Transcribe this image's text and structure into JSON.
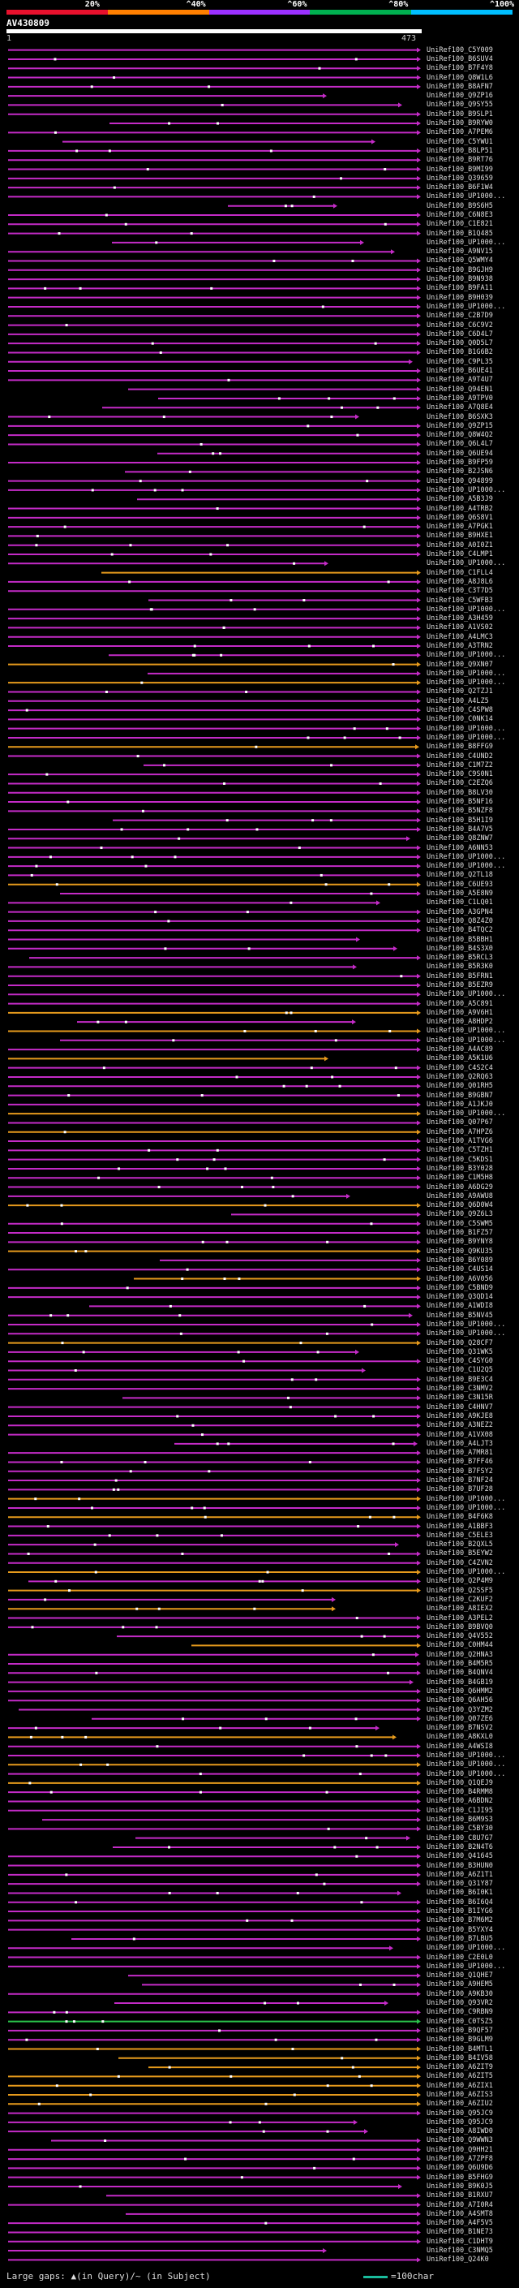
{
  "legend": {
    "percent_labels": [
      "20%",
      "^40%",
      "^60%",
      "^80%",
      "^100%"
    ],
    "segment_colors": [
      "#e8112d",
      "#ff7f00",
      "#9b30ff",
      "#00b050",
      "#00bfff"
    ]
  },
  "query": {
    "id": "AV430809",
    "start": "1",
    "end": "473"
  },
  "colors": {
    "purple": "#c42bc7",
    "orange": "#e69a1c",
    "green": "#2ac24a",
    "white": "#ffffff"
  },
  "hits": [
    {
      "label": "UniRef100_C5Y009",
      "color": "purple"
    },
    {
      "label": "UniRef100_B6SUV4",
      "color": "purple"
    },
    {
      "label": "UniRef100_B7F4Y8",
      "color": "purple"
    },
    {
      "label": "UniRef100_Q8W1L6",
      "color": "purple"
    },
    {
      "label": "UniRef100_B8AFN7",
      "color": "purple"
    },
    {
      "label": "UniRef100_Q9ZP16",
      "color": "purple"
    },
    {
      "label": "UniRef100_Q9SY55",
      "color": "purple"
    },
    {
      "label": "UniRef100_B9SLP1",
      "color": "purple"
    },
    {
      "label": "UniRef100_B9RYW0",
      "color": "purple"
    },
    {
      "label": "UniRef100_A7PEM6",
      "color": "purple"
    },
    {
      "label": "UniRef100_C5YWU1",
      "color": "purple"
    },
    {
      "label": "UniRef100_B8LP51",
      "color": "purple"
    },
    {
      "label": "UniRef100_B9RT76",
      "color": "purple"
    },
    {
      "label": "UniRef100_B9MI99",
      "color": "purple"
    },
    {
      "label": "UniRef100_Q39659",
      "color": "purple"
    },
    {
      "label": "UniRef100_B6F1W4",
      "color": "purple"
    },
    {
      "label": "UniRef100_UP1000...",
      "color": "purple"
    },
    {
      "label": "UniRef100_B9S6H5",
      "color": "purple"
    },
    {
      "label": "UniRef100_C6N8E3",
      "color": "purple"
    },
    {
      "label": "UniRef100_C1E821",
      "color": "purple"
    },
    {
      "label": "UniRef100_B1Q485",
      "color": "purple"
    },
    {
      "label": "UniRef100_UP1000...",
      "color": "purple"
    },
    {
      "label": "UniRef100_A9NV15",
      "color": "purple"
    },
    {
      "label": "UniRef100_Q5WMY4",
      "color": "purple"
    },
    {
      "label": "UniRef100_B9GJH9",
      "color": "purple"
    },
    {
      "label": "UniRef100_B9N938",
      "color": "purple"
    },
    {
      "label": "UniRef100_B9FA11",
      "color": "purple"
    },
    {
      "label": "UniRef100_B9H039",
      "color": "purple"
    },
    {
      "label": "UniRef100_UP1000...",
      "color": "purple"
    },
    {
      "label": "UniRef100_C2B7D9",
      "color": "purple"
    },
    {
      "label": "UniRef100_C6C9V2",
      "color": "purple"
    },
    {
      "label": "UniRef100_C6D4L7",
      "color": "purple"
    },
    {
      "label": "UniRef100_Q0D5L7",
      "color": "purple"
    },
    {
      "label": "UniRef100_B1G6B2",
      "color": "purple"
    },
    {
      "label": "UniRef100_C9PL35",
      "color": "purple"
    },
    {
      "label": "UniRef100_B6UE41",
      "color": "purple"
    },
    {
      "label": "UniRef100_A9T4U7",
      "color": "purple"
    },
    {
      "label": "UniRef100_Q94EN1",
      "color": "purple"
    },
    {
      "label": "UniRef100_A9TPV0",
      "color": "purple"
    },
    {
      "label": "UniRef100_A7Q8E4",
      "color": "purple"
    },
    {
      "label": "UniRef100_B6SXK3",
      "color": "purple"
    },
    {
      "label": "UniRef100_Q9ZP15",
      "color": "purple"
    },
    {
      "label": "UniRef100_Q8W4Q2",
      "color": "purple"
    },
    {
      "label": "UniRef100_Q6L4L7",
      "color": "purple"
    },
    {
      "label": "UniRef100_Q6UE94",
      "color": "purple"
    },
    {
      "label": "UniRef100_B9FP59",
      "color": "purple"
    },
    {
      "label": "UniRef100_B2JSN6",
      "color": "purple"
    },
    {
      "label": "UniRef100_Q94899",
      "color": "purple"
    },
    {
      "label": "UniRef100_UP1000...",
      "color": "purple"
    },
    {
      "label": "UniRef100_A5B3J9",
      "color": "purple"
    },
    {
      "label": "UniRef100_A4TRB2",
      "color": "purple"
    },
    {
      "label": "UniRef100_Q6S8V1",
      "color": "purple"
    },
    {
      "label": "UniRef100_A7PGK1",
      "color": "purple"
    },
    {
      "label": "UniRef100_B9HXE1",
      "color": "purple"
    },
    {
      "label": "UniRef100_A0I0Z1",
      "color": "purple"
    },
    {
      "label": "UniRef100_C4LMP1",
      "color": "purple"
    },
    {
      "label": "UniRef100_UP1000...",
      "color": "purple"
    },
    {
      "label": "UniRef100_C1FLL4",
      "color": "orange"
    },
    {
      "label": "UniRef100_A8J8L6",
      "color": "purple"
    },
    {
      "label": "UniRef100_C3T7D5",
      "color": "purple"
    },
    {
      "label": "UniRef100_C5WFB3",
      "color": "purple"
    },
    {
      "label": "UniRef100_UP1000...",
      "color": "purple"
    },
    {
      "label": "UniRef100_A3H459",
      "color": "purple"
    },
    {
      "label": "UniRef100_A1VS02",
      "color": "purple"
    },
    {
      "label": "UniRef100_A4LMC3",
      "color": "purple"
    },
    {
      "label": "UniRef100_A3TRN2",
      "color": "purple"
    },
    {
      "label": "UniRef100_UP1000...",
      "color": "purple"
    },
    {
      "label": "UniRef100_Q9XN07",
      "color": "orange"
    },
    {
      "label": "UniRef100_UP1000...",
      "color": "purple"
    },
    {
      "label": "UniRef100_UP1000...",
      "color": "orange"
    },
    {
      "label": "UniRef100_Q2TZJ1",
      "color": "purple"
    },
    {
      "label": "UniRef100_A4LZ5",
      "color": "purple"
    },
    {
      "label": "UniRef100_C4SPW8",
      "color": "purple"
    },
    {
      "label": "UniRef100_C0NK14",
      "color": "purple"
    },
    {
      "label": "UniRef100_UP1000...",
      "color": "purple"
    },
    {
      "label": "UniRef100_UP1000...",
      "color": "purple"
    },
    {
      "label": "UniRef100_B8FFG9",
      "color": "orange"
    },
    {
      "label": "UniRef100_C4UND2",
      "color": "purple"
    },
    {
      "label": "UniRef100_C1M7Z2",
      "color": "purple"
    },
    {
      "label": "UniRef100_C9S0N1",
      "color": "purple"
    },
    {
      "label": "UniRef100_C2EZQ6",
      "color": "purple"
    },
    {
      "label": "UniRef100_B8LV30",
      "color": "purple"
    },
    {
      "label": "UniRef100_B5NF16",
      "color": "purple"
    },
    {
      "label": "UniRef100_B5NZF8",
      "color": "purple"
    },
    {
      "label": "UniRef100_B5H1I9",
      "color": "purple"
    },
    {
      "label": "UniRef100_B4A7V5",
      "color": "purple"
    },
    {
      "label": "UniRef100_Q8ZNW7",
      "color": "purple"
    },
    {
      "label": "UniRef100_A6NN53",
      "color": "purple"
    },
    {
      "label": "UniRef100_UP1000...",
      "color": "purple"
    },
    {
      "label": "UniRef100_UP1000...",
      "color": "purple"
    },
    {
      "label": "UniRef100_Q2TL18",
      "color": "purple"
    },
    {
      "label": "UniRef100_C6UE93",
      "color": "orange"
    },
    {
      "label": "UniRef100_A5E8N9",
      "color": "purple"
    },
    {
      "label": "UniRef100_C1LQ01",
      "color": "purple"
    },
    {
      "label": "UniRef100_A3GPN4",
      "color": "purple"
    },
    {
      "label": "UniRef100_Q8Z4Z0",
      "color": "purple"
    },
    {
      "label": "UniRef100_B4TQC2",
      "color": "purple"
    },
    {
      "label": "UniRef100_B5BBH1",
      "color": "purple"
    },
    {
      "label": "UniRef100_B4S3X0",
      "color": "purple"
    },
    {
      "label": "UniRef100_B5RCL3",
      "color": "purple"
    },
    {
      "label": "UniRef100_B5R3K0",
      "color": "purple"
    },
    {
      "label": "UniRef100_B5FRN1",
      "color": "purple"
    },
    {
      "label": "UniRef100_B5EZR9",
      "color": "purple"
    },
    {
      "label": "UniRef100_UP1000...",
      "color": "purple"
    },
    {
      "label": "UniRef100_A5C891",
      "color": "purple"
    },
    {
      "label": "UniRef100_A9V6H1",
      "color": "orange"
    },
    {
      "label": "UniRef100_A8HDP2",
      "color": "purple"
    },
    {
      "label": "UniRef100_UP1000...",
      "color": "orange"
    },
    {
      "label": "UniRef100_UP1000...",
      "color": "purple"
    },
    {
      "label": "UniRef100_A4AC89",
      "color": "purple"
    },
    {
      "label": "UniRef100_A5K1U6",
      "color": "orange"
    },
    {
      "label": "UniRef100_C4S2C4",
      "color": "purple"
    },
    {
      "label": "UniRef100_Q2RQ63",
      "color": "purple"
    },
    {
      "label": "UniRef100_Q01RH5",
      "color": "purple"
    },
    {
      "label": "UniRef100_B9GBN7",
      "color": "purple"
    },
    {
      "label": "UniRef100_A1JKJ0",
      "color": "purple"
    },
    {
      "label": "UniRef100_UP1000...",
      "color": "orange"
    },
    {
      "label": "UniRef100_Q07P67",
      "color": "purple"
    },
    {
      "label": "UniRef100_A7HPZ6",
      "color": "orange"
    },
    {
      "label": "UniRef100_A1TVG6",
      "color": "purple"
    },
    {
      "label": "UniRef100_C5TZH1",
      "color": "purple"
    },
    {
      "label": "UniRef100_C5KDS1",
      "color": "purple"
    },
    {
      "label": "UniRef100_B3Y028",
      "color": "purple"
    },
    {
      "label": "UniRef100_C1M5H8",
      "color": "purple"
    },
    {
      "label": "UniRef100_A6DG29",
      "color": "purple"
    },
    {
      "label": "UniRef100_A9AWU8",
      "color": "purple"
    },
    {
      "label": "UniRef100_Q6D0W4",
      "color": "orange"
    },
    {
      "label": "UniRef100_Q9Z6L3",
      "color": "purple"
    },
    {
      "label": "UniRef100_C5SWM5",
      "color": "purple"
    },
    {
      "label": "UniRef100_B1FZ57",
      "color": "purple"
    },
    {
      "label": "UniRef100_B9YNY8",
      "color": "purple"
    },
    {
      "label": "UniRef100_Q9KU35",
      "color": "orange"
    },
    {
      "label": "UniRef100_B6Y089",
      "color": "purple"
    },
    {
      "label": "UniRef100_C4US14",
      "color": "purple"
    },
    {
      "label": "UniRef100_A6V056",
      "color": "orange"
    },
    {
      "label": "UniRef100_C5BND9",
      "color": "purple"
    },
    {
      "label": "UniRef100_Q3QD14",
      "color": "purple"
    },
    {
      "label": "UniRef100_A1WDI8",
      "color": "purple"
    },
    {
      "label": "UniRef100_B5NV45",
      "color": "purple"
    },
    {
      "label": "UniRef100_UP1000...",
      "color": "purple"
    },
    {
      "label": "UniRef100_UP1000...",
      "color": "purple"
    },
    {
      "label": "UniRef100_Q28CF7",
      "color": "orange"
    },
    {
      "label": "UniRef100_Q31WK5",
      "color": "purple"
    },
    {
      "label": "UniRef100_C4SYG0",
      "color": "purple"
    },
    {
      "label": "UniRef100_C1U2Q5",
      "color": "purple"
    },
    {
      "label": "UniRef100_B9E3C4",
      "color": "purple"
    },
    {
      "label": "UniRef100_C3NMV2",
      "color": "purple"
    },
    {
      "label": "UniRef100_C3N15R",
      "color": "purple"
    },
    {
      "label": "UniRef100_C4HNV7",
      "color": "purple"
    },
    {
      "label": "UniRef100_A9KJE8",
      "color": "purple"
    },
    {
      "label": "UniRef100_A3NEZ2",
      "color": "purple"
    },
    {
      "label": "UniRef100_A1VX08",
      "color": "purple"
    },
    {
      "label": "UniRef100_A4LJT3",
      "color": "purple"
    },
    {
      "label": "UniRef100_A7MR81",
      "color": "purple"
    },
    {
      "label": "UniRef100_B7FF46",
      "color": "purple"
    },
    {
      "label": "UniRef100_B7FSY2",
      "color": "purple"
    },
    {
      "label": "UniRef100_B7NF24",
      "color": "purple"
    },
    {
      "label": "UniRef100_B7UF28",
      "color": "purple"
    },
    {
      "label": "UniRef100_UP1000...",
      "color": "orange"
    },
    {
      "label": "UniRef100_UP1000...",
      "color": "purple"
    },
    {
      "label": "UniRef100_B4F6K8",
      "color": "orange"
    },
    {
      "label": "UniRef100_A1BBF3",
      "color": "purple"
    },
    {
      "label": "UniRef100_C5ELE3",
      "color": "purple"
    },
    {
      "label": "UniRef100_B2QXL5",
      "color": "purple"
    },
    {
      "label": "UniRef100_B5EYW2",
      "color": "purple"
    },
    {
      "label": "UniRef100_C4ZVN2",
      "color": "purple"
    },
    {
      "label": "UniRef100_UP1000...",
      "color": "orange"
    },
    {
      "label": "UniRef100_Q2P4M9",
      "color": "purple"
    },
    {
      "label": "UniRef100_Q2SSF5",
      "color": "orange"
    },
    {
      "label": "UniRef100_C2KUF2",
      "color": "purple"
    },
    {
      "label": "UniRef100_A8IEX2",
      "color": "orange"
    },
    {
      "label": "UniRef100_A3PEL2",
      "color": "purple"
    },
    {
      "label": "UniRef100_B9BVQ0",
      "color": "purple"
    },
    {
      "label": "UniRef100_Q4V552",
      "color": "purple"
    },
    {
      "label": "UniRef100_C0HM44",
      "color": "orange"
    },
    {
      "label": "UniRef100_Q2HNA3",
      "color": "purple"
    },
    {
      "label": "UniRef100_B4M5R5",
      "color": "purple"
    },
    {
      "label": "UniRef100_B4QNV4",
      "color": "purple"
    },
    {
      "label": "UniRef100_B4GB19",
      "color": "purple"
    },
    {
      "label": "UniRef100_Q6HMM2",
      "color": "purple"
    },
    {
      "label": "UniRef100_Q6AH56",
      "color": "purple"
    },
    {
      "label": "UniRef100_Q3YZM2",
      "color": "purple"
    },
    {
      "label": "UniRef100_Q07ZE6",
      "color": "purple"
    },
    {
      "label": "UniRef100_B7NSV2",
      "color": "purple"
    },
    {
      "label": "UniRef100_A8KXL0",
      "color": "orange"
    },
    {
      "label": "UniRef100_A4WSI8",
      "color": "purple"
    },
    {
      "label": "UniRef100_UP1000...",
      "color": "purple"
    },
    {
      "label": "UniRef100_UP1000...",
      "color": "orange"
    },
    {
      "label": "UniRef100_UP1000...",
      "color": "purple"
    },
    {
      "label": "UniRef100_Q1QEJ9",
      "color": "orange"
    },
    {
      "label": "UniRef100_B4RMM8",
      "color": "purple"
    },
    {
      "label": "UniRef100_A6BDN2",
      "color": "purple"
    },
    {
      "label": "UniRef100_C1JI95",
      "color": "purple"
    },
    {
      "label": "UniRef100_B6M9S3",
      "color": "purple"
    },
    {
      "label": "UniRef100_C5BY30",
      "color": "purple"
    },
    {
      "label": "UniRef100_C8U7G7",
      "color": "purple"
    },
    {
      "label": "UniRef100_B2N4T6",
      "color": "purple"
    },
    {
      "label": "UniRef100_Q41645",
      "color": "purple"
    },
    {
      "label": "UniRef100_B3HUN0",
      "color": "purple"
    },
    {
      "label": "UniRef100_A6Z1T1",
      "color": "purple"
    },
    {
      "label": "UniRef100_Q31Y87",
      "color": "purple"
    },
    {
      "label": "UniRef100_B6I0K1",
      "color": "purple"
    },
    {
      "label": "UniRef100_B6I6Q4",
      "color": "purple"
    },
    {
      "label": "UniRef100_B1IYG6",
      "color": "purple"
    },
    {
      "label": "UniRef100_B7M6M2",
      "color": "purple"
    },
    {
      "label": "UniRef100_B5YXY4",
      "color": "purple"
    },
    {
      "label": "UniRef100_B7LBU5",
      "color": "purple"
    },
    {
      "label": "UniRef100_UP1000...",
      "color": "purple"
    },
    {
      "label": "UniRef100_C2E0L0",
      "color": "purple"
    },
    {
      "label": "UniRef100_UP1000...",
      "color": "purple"
    },
    {
      "label": "UniRef100_Q1QHE7",
      "color": "purple"
    },
    {
      "label": "UniRef100_A9HEM5",
      "color": "purple"
    },
    {
      "label": "UniRef100_A9KB30",
      "color": "purple"
    },
    {
      "label": "UniRef100_Q93VR2",
      "color": "purple"
    },
    {
      "label": "UniRef100_C9RBN9",
      "color": "purple"
    },
    {
      "label": "UniRef100_C0TSZ5",
      "color": "green"
    },
    {
      "label": "UniRef100_B9QF57",
      "color": "purple"
    },
    {
      "label": "UniRef100_B9GLM9",
      "color": "purple"
    },
    {
      "label": "UniRef100_B4MTL1",
      "color": "orange"
    },
    {
      "label": "UniRef100_B4IV58",
      "color": "orange"
    },
    {
      "label": "UniRef100_A6ZIT9",
      "color": "orange"
    },
    {
      "label": "UniRef100_A6ZIT5",
      "color": "orange"
    },
    {
      "label": "UniRef100_A6ZIX1",
      "color": "orange"
    },
    {
      "label": "UniRef100_A6ZIS3",
      "color": "orange"
    },
    {
      "label": "UniRef100_A6ZIU2",
      "color": "orange"
    },
    {
      "label": "UniRef100_Q95JC9",
      "color": "purple"
    },
    {
      "label": "UniRef100_Q95JC9",
      "color": "purple"
    },
    {
      "label": "UniRef100_A8IWD0",
      "color": "purple"
    },
    {
      "label": "UniRef100_Q9WWN3",
      "color": "purple"
    },
    {
      "label": "UniRef100_Q9HH21",
      "color": "purple"
    },
    {
      "label": "UniRef100_A7ZPF8",
      "color": "purple"
    },
    {
      "label": "UniRef100_Q6U9D6",
      "color": "purple"
    },
    {
      "label": "UniRef100_B5FHG9",
      "color": "purple"
    },
    {
      "label": "UniRef100_B9K0J5",
      "color": "purple"
    },
    {
      "label": "UniRef100_B1RXU7",
      "color": "purple"
    },
    {
      "label": "UniRef100_A7I0R4",
      "color": "purple"
    },
    {
      "label": "UniRef100_A4SMT8",
      "color": "purple"
    },
    {
      "label": "UniRef100_A4F5V5",
      "color": "purple"
    },
    {
      "label": "UniRef100_B1NE73",
      "color": "purple"
    },
    {
      "label": "UniRef100_C1DHT9",
      "color": "purple"
    },
    {
      "label": "UniRef100_C3NMQ5",
      "color": "purple"
    },
    {
      "label": "UniRef100_Q24K0",
      "color": "purple"
    }
  ],
  "footer": {
    "gap_text": "Large gaps: ▲(in Query)/~ (in Subject)",
    "scale_text": "=100char"
  }
}
